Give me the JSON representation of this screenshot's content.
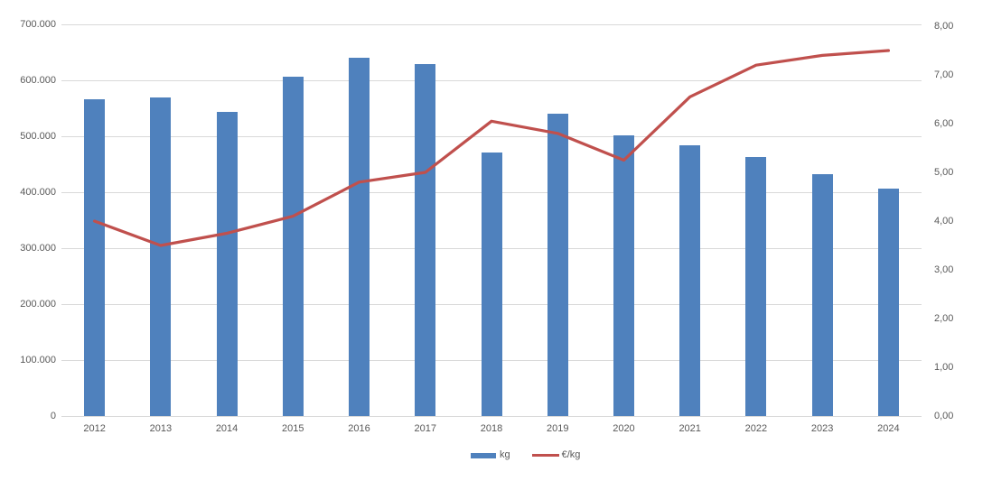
{
  "colors": {
    "bar": "#4f81bd",
    "line": "#c0504d",
    "grid": "#d9d9d9",
    "axis_text": "#595959"
  },
  "legend": {
    "position": "bottom",
    "items": [
      {
        "label": "kg",
        "marker": "bar-swatch"
      },
      {
        "label": "€/kg",
        "marker": "line-swatch"
      }
    ]
  },
  "chart_data": {
    "type": "bar",
    "subtype": "combo-bar-line-dual-axis",
    "title": "",
    "xlabel": "",
    "ylabel_left": "",
    "ylabel_right": "",
    "grid": true,
    "legend_position": "bottom",
    "categories": [
      "2012",
      "2013",
      "2014",
      "2015",
      "2016",
      "2017",
      "2018",
      "2019",
      "2020",
      "2021",
      "2022",
      "2023",
      "2024"
    ],
    "series": [
      {
        "name": "kg",
        "type": "bar",
        "axis": "left",
        "color": "#4f81bd",
        "values": [
          566000,
          570000,
          543000,
          607000,
          641000,
          629000,
          471000,
          540000,
          502000,
          484000,
          463000,
          432000,
          406000
        ]
      },
      {
        "name": "€/kg",
        "type": "line",
        "axis": "right",
        "color": "#c0504d",
        "values": [
          4.0,
          3.5,
          3.75,
          4.1,
          4.8,
          5.0,
          6.05,
          5.8,
          5.25,
          6.55,
          7.2,
          7.4,
          7.5
        ]
      }
    ],
    "left_axis": {
      "min": 0,
      "max": 700000,
      "step": 100000,
      "tick_labels": [
        "0",
        "100.000",
        "200.000",
        "300.000",
        "400.000",
        "500.000",
        "600.000",
        "700.000"
      ]
    },
    "right_axis": {
      "min": 0,
      "max": 8,
      "step": 1,
      "tick_labels": [
        "0,00",
        "1,00",
        "2,00",
        "3,00",
        "4,00",
        "5,00",
        "6,00",
        "7,00",
        "8,00"
      ]
    }
  }
}
